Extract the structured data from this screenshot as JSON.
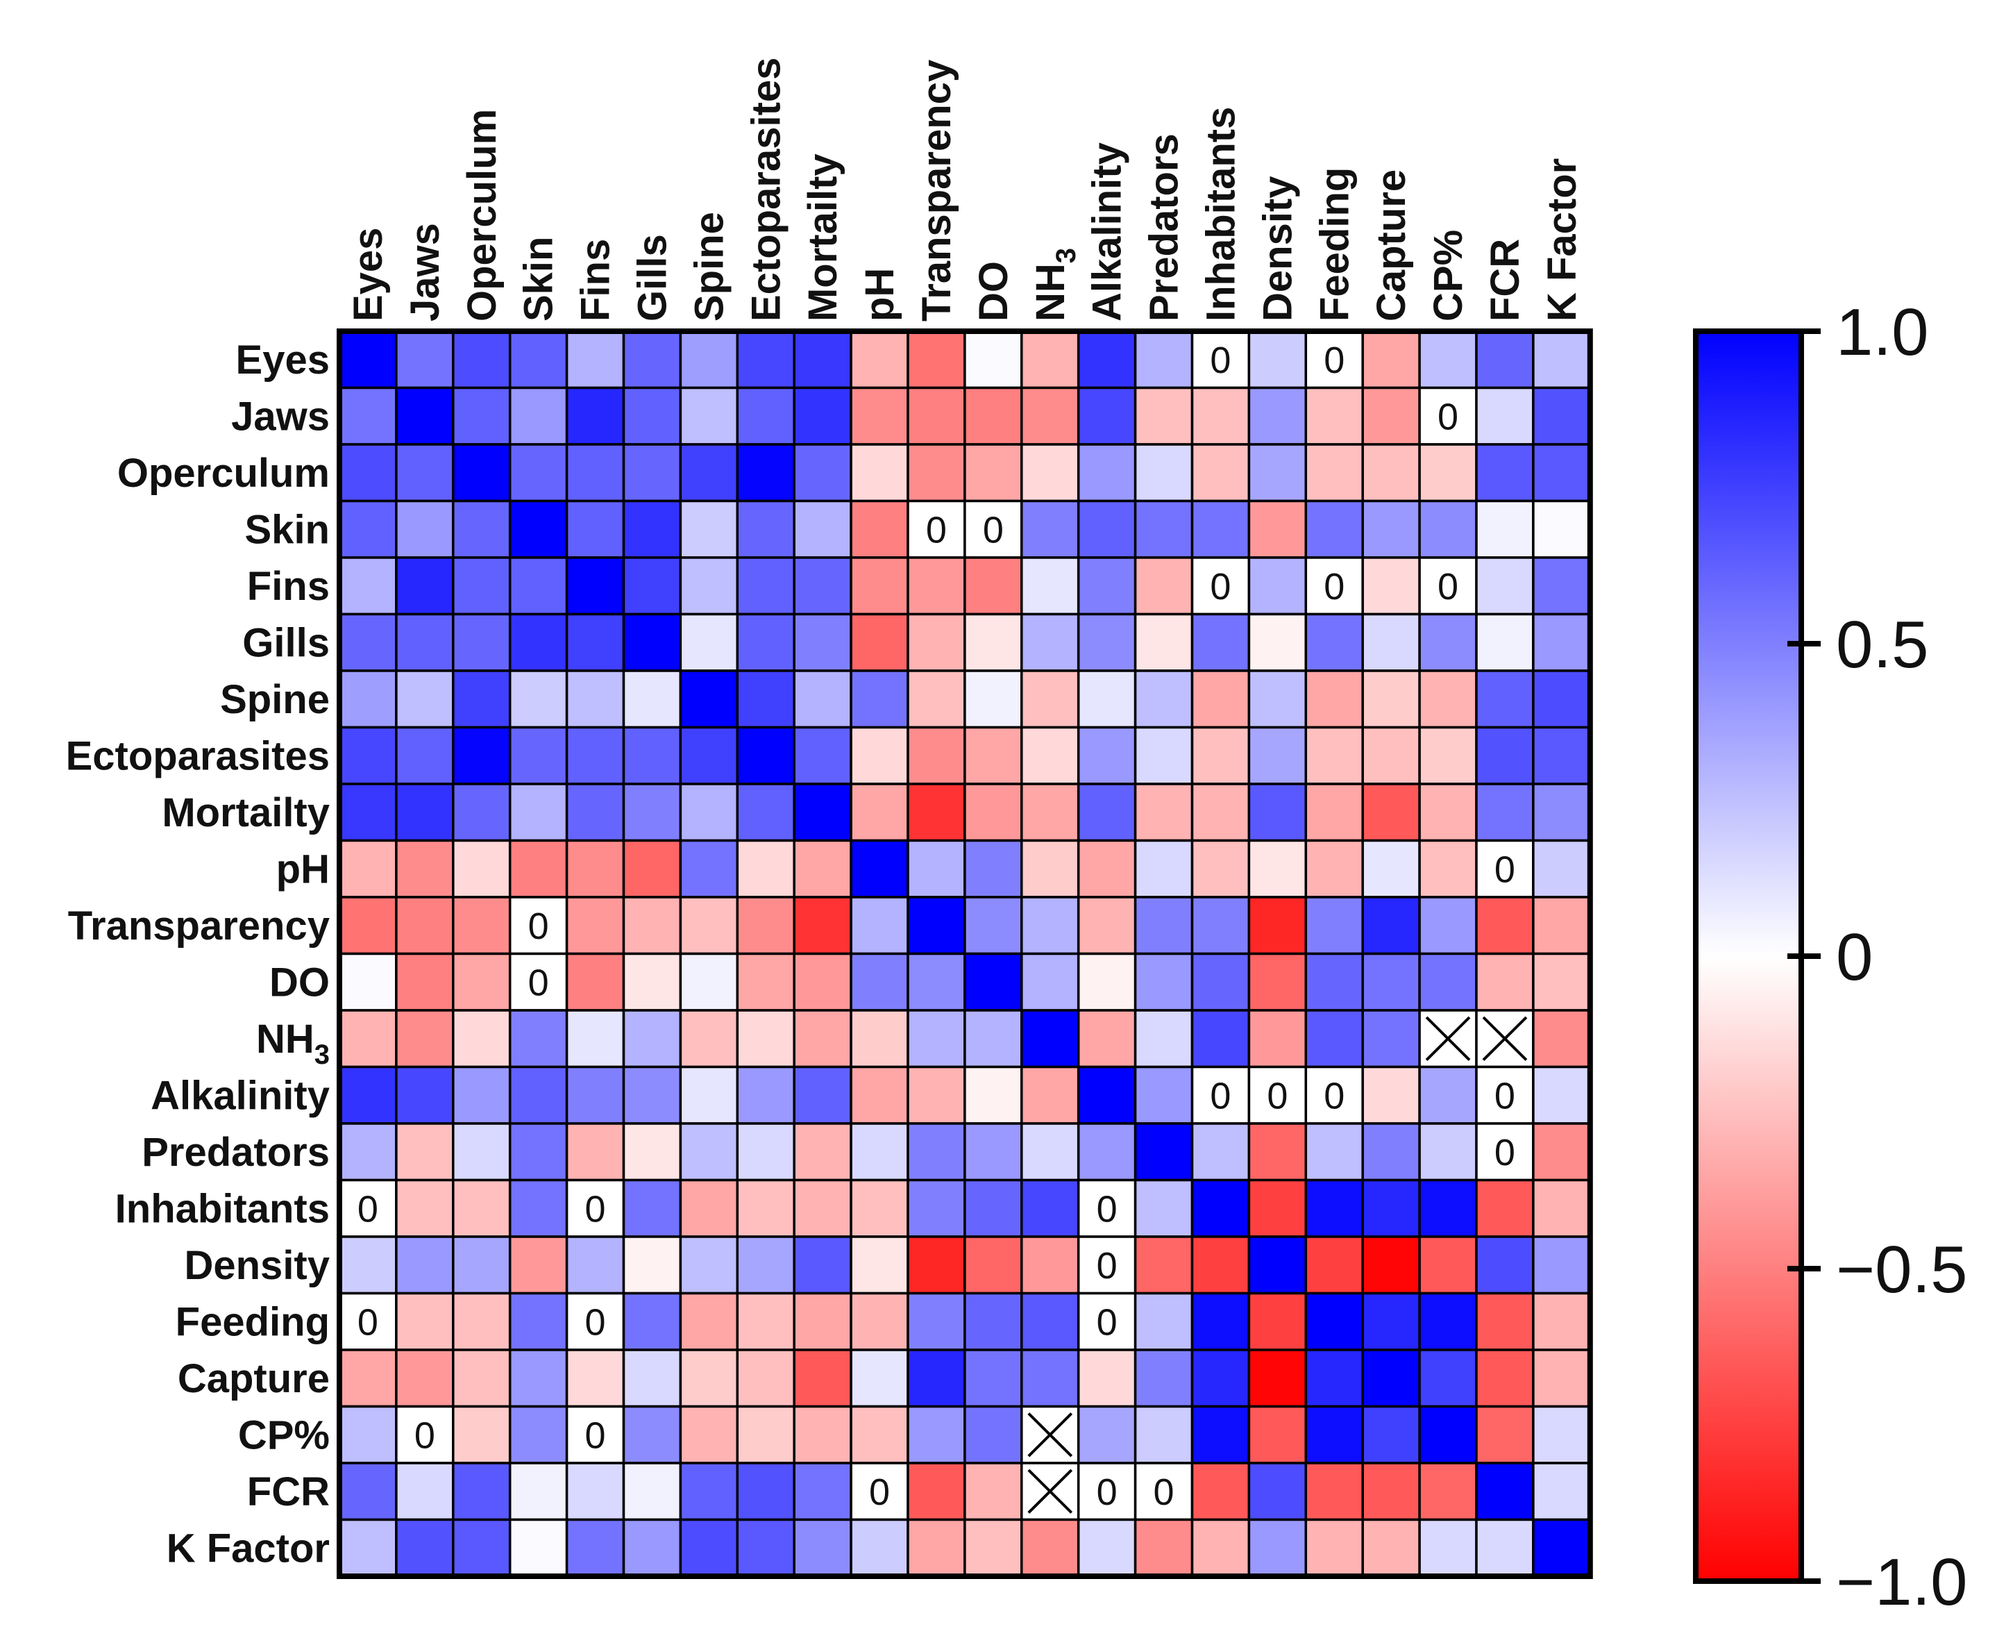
{
  "chart_data": {
    "type": "heatmap",
    "title": "",
    "variables": [
      "Eyes",
      "Jaws",
      "Operculum",
      "Skin",
      "Fins",
      "Gills",
      "Spine",
      "Ectoparasites",
      "Mortailty",
      "pH",
      "Transparency",
      "DO",
      "NH3",
      "Alkalinity",
      "Predators",
      "Inhabitants",
      "Density",
      "Feeding",
      "Capture",
      "CP%",
      "FCR",
      "K Factor"
    ],
    "variable_labels": [
      {
        "base": "Eyes"
      },
      {
        "base": "Jaws"
      },
      {
        "base": "Operculum"
      },
      {
        "base": "Skin"
      },
      {
        "base": "Fins"
      },
      {
        "base": "Gills"
      },
      {
        "base": "Spine"
      },
      {
        "base": "Ectoparasites"
      },
      {
        "base": "Mortailty"
      },
      {
        "base": "pH"
      },
      {
        "base": "Transparency"
      },
      {
        "base": "DO"
      },
      {
        "base": "NH",
        "sub": "3"
      },
      {
        "base": "Alkalinity"
      },
      {
        "base": "Predators"
      },
      {
        "base": "Inhabitants"
      },
      {
        "base": "Density"
      },
      {
        "base": "Feeding"
      },
      {
        "base": "Capture"
      },
      {
        "base": "CP%"
      },
      {
        "base": "FCR"
      },
      {
        "base": "K Factor"
      }
    ],
    "matrix": [
      [
        1.0,
        0.55,
        0.7,
        0.62,
        0.3,
        0.6,
        0.38,
        0.72,
        0.78,
        -0.3,
        -0.55,
        0.02,
        -0.3,
        0.8,
        0.3,
        0,
        0.2,
        0,
        -0.35,
        0.25,
        0.6,
        0.25
      ],
      [
        0.55,
        1.0,
        0.62,
        0.4,
        0.85,
        0.62,
        0.25,
        0.62,
        0.8,
        -0.45,
        -0.5,
        -0.5,
        -0.45,
        0.72,
        -0.25,
        -0.25,
        0.4,
        -0.25,
        -0.4,
        0,
        0.15,
        0.68
      ],
      [
        0.7,
        0.62,
        1.0,
        0.6,
        0.62,
        0.6,
        0.75,
        0.98,
        0.6,
        -0.15,
        -0.45,
        -0.35,
        -0.15,
        0.4,
        0.15,
        -0.25,
        0.35,
        -0.25,
        -0.25,
        -0.2,
        0.65,
        0.65
      ],
      [
        0.62,
        0.4,
        0.6,
        1.0,
        0.62,
        0.8,
        0.2,
        0.6,
        0.3,
        -0.5,
        0,
        0,
        0.5,
        0.62,
        0.55,
        0.55,
        -0.4,
        0.55,
        0.4,
        0.45,
        0.05,
        0.02
      ],
      [
        0.3,
        0.85,
        0.62,
        0.62,
        1.0,
        0.75,
        0.25,
        0.62,
        0.6,
        -0.45,
        -0.4,
        -0.5,
        0.1,
        0.5,
        -0.3,
        0,
        0.3,
        0,
        -0.15,
        0,
        0.15,
        0.55
      ],
      [
        0.6,
        0.62,
        0.6,
        0.8,
        0.75,
        1.0,
        0.1,
        0.62,
        0.5,
        -0.6,
        -0.3,
        -0.1,
        0.3,
        0.45,
        -0.1,
        0.55,
        -0.05,
        0.55,
        0.15,
        0.45,
        0.05,
        0.4
      ],
      [
        0.38,
        0.25,
        0.75,
        0.2,
        0.25,
        0.1,
        1.0,
        0.75,
        0.3,
        0.55,
        -0.25,
        0.05,
        -0.25,
        0.1,
        0.25,
        -0.35,
        0.25,
        -0.35,
        -0.2,
        -0.3,
        0.62,
        0.7
      ],
      [
        0.72,
        0.62,
        0.98,
        0.6,
        0.62,
        0.62,
        0.75,
        1.0,
        0.62,
        -0.15,
        -0.45,
        -0.35,
        -0.15,
        0.4,
        0.15,
        -0.25,
        0.35,
        -0.25,
        -0.25,
        -0.2,
        0.68,
        0.65
      ],
      [
        0.78,
        0.8,
        0.6,
        0.3,
        0.6,
        0.5,
        0.3,
        0.62,
        1.0,
        -0.35,
        -0.8,
        -0.4,
        -0.35,
        0.62,
        -0.3,
        -0.3,
        0.65,
        -0.35,
        -0.65,
        -0.3,
        0.55,
        0.45
      ],
      [
        -0.3,
        -0.45,
        -0.15,
        -0.5,
        -0.45,
        -0.6,
        0.55,
        -0.15,
        -0.35,
        1.0,
        0.3,
        0.5,
        -0.2,
        -0.35,
        0.15,
        -0.25,
        -0.1,
        -0.3,
        0.1,
        -0.25,
        0,
        0.2
      ],
      [
        -0.55,
        -0.5,
        -0.45,
        0,
        -0.4,
        -0.3,
        -0.25,
        -0.45,
        -0.8,
        0.3,
        1.0,
        0.45,
        0.3,
        -0.3,
        0.5,
        0.5,
        -0.85,
        0.5,
        0.85,
        0.4,
        -0.65,
        -0.35
      ],
      [
        0.02,
        -0.5,
        -0.35,
        0,
        -0.5,
        -0.1,
        0.05,
        -0.35,
        -0.4,
        0.5,
        0.45,
        1.0,
        0.3,
        -0.05,
        0.4,
        0.6,
        -0.6,
        0.6,
        0.55,
        0.55,
        -0.3,
        -0.25
      ],
      [
        -0.3,
        -0.45,
        -0.15,
        0.5,
        0.1,
        0.3,
        -0.25,
        -0.15,
        -0.35,
        -0.2,
        0.3,
        0.3,
        1.0,
        -0.35,
        0.15,
        0.72,
        -0.4,
        0.65,
        0.55,
        null,
        null,
        -0.45
      ],
      [
        0.8,
        0.72,
        0.4,
        0.62,
        0.5,
        0.45,
        0.1,
        0.4,
        0.62,
        -0.35,
        -0.3,
        -0.05,
        -0.35,
        1.0,
        0.4,
        0,
        0,
        0,
        -0.15,
        0.35,
        0,
        0.15
      ],
      [
        0.3,
        -0.25,
        0.15,
        0.55,
        -0.3,
        -0.1,
        0.25,
        0.15,
        -0.3,
        0.15,
        0.5,
        0.4,
        0.15,
        0.4,
        1.0,
        0.25,
        -0.6,
        0.25,
        0.5,
        0.2,
        0,
        -0.45
      ],
      [
        0,
        -0.25,
        -0.25,
        0.55,
        0,
        0.55,
        -0.35,
        -0.25,
        -0.3,
        -0.25,
        0.5,
        0.6,
        0.72,
        0,
        0.25,
        1.0,
        -0.75,
        0.95,
        0.85,
        0.95,
        -0.65,
        -0.3
      ],
      [
        0.2,
        0.4,
        0.35,
        -0.4,
        0.3,
        -0.05,
        0.25,
        0.35,
        0.65,
        -0.1,
        -0.85,
        -0.6,
        -0.4,
        0,
        -0.6,
        -0.75,
        1.0,
        -0.75,
        -0.98,
        -0.65,
        0.7,
        0.4
      ],
      [
        0,
        -0.25,
        -0.25,
        0.55,
        0,
        0.55,
        -0.35,
        -0.25,
        -0.35,
        -0.3,
        0.5,
        0.6,
        0.65,
        0,
        0.25,
        0.95,
        -0.75,
        1.0,
        0.85,
        0.95,
        -0.65,
        -0.3
      ],
      [
        -0.35,
        -0.4,
        -0.25,
        0.4,
        -0.15,
        0.15,
        -0.2,
        -0.25,
        -0.65,
        0.1,
        0.85,
        0.55,
        0.55,
        -0.15,
        0.5,
        0.85,
        -0.98,
        0.85,
        1.0,
        0.75,
        -0.65,
        -0.3
      ],
      [
        0.25,
        0,
        -0.2,
        0.45,
        0,
        0.45,
        -0.3,
        -0.2,
        -0.3,
        -0.25,
        0.4,
        0.55,
        null,
        0.35,
        0.2,
        0.95,
        -0.65,
        0.95,
        0.75,
        1.0,
        -0.6,
        0.15
      ],
      [
        0.6,
        0.15,
        0.65,
        0.05,
        0.15,
        0.05,
        0.62,
        0.68,
        0.55,
        0,
        -0.65,
        -0.3,
        null,
        0,
        0,
        -0.65,
        0.7,
        -0.65,
        -0.65,
        -0.6,
        1.0,
        0.15
      ],
      [
        0.25,
        0.68,
        0.65,
        0.02,
        0.55,
        0.4,
        0.7,
        0.65,
        0.45,
        0.2,
        -0.35,
        -0.25,
        -0.45,
        0.15,
        -0.45,
        -0.3,
        0.4,
        -0.3,
        -0.3,
        0.15,
        0.15,
        1.0
      ]
    ],
    "zero_label": "0",
    "colorbar": {
      "min": -1.0,
      "max": 1.0,
      "ticks": [
        1.0,
        0.5,
        0,
        -0.5,
        -1.0
      ],
      "tick_labels": [
        "1.0",
        "0.5",
        "0",
        "−0.5",
        "−1.0"
      ],
      "colors": {
        "negative": "#ff0000",
        "zero": "#ffffff",
        "positive": "#0000ff"
      }
    },
    "grid": true,
    "legend": "right"
  }
}
